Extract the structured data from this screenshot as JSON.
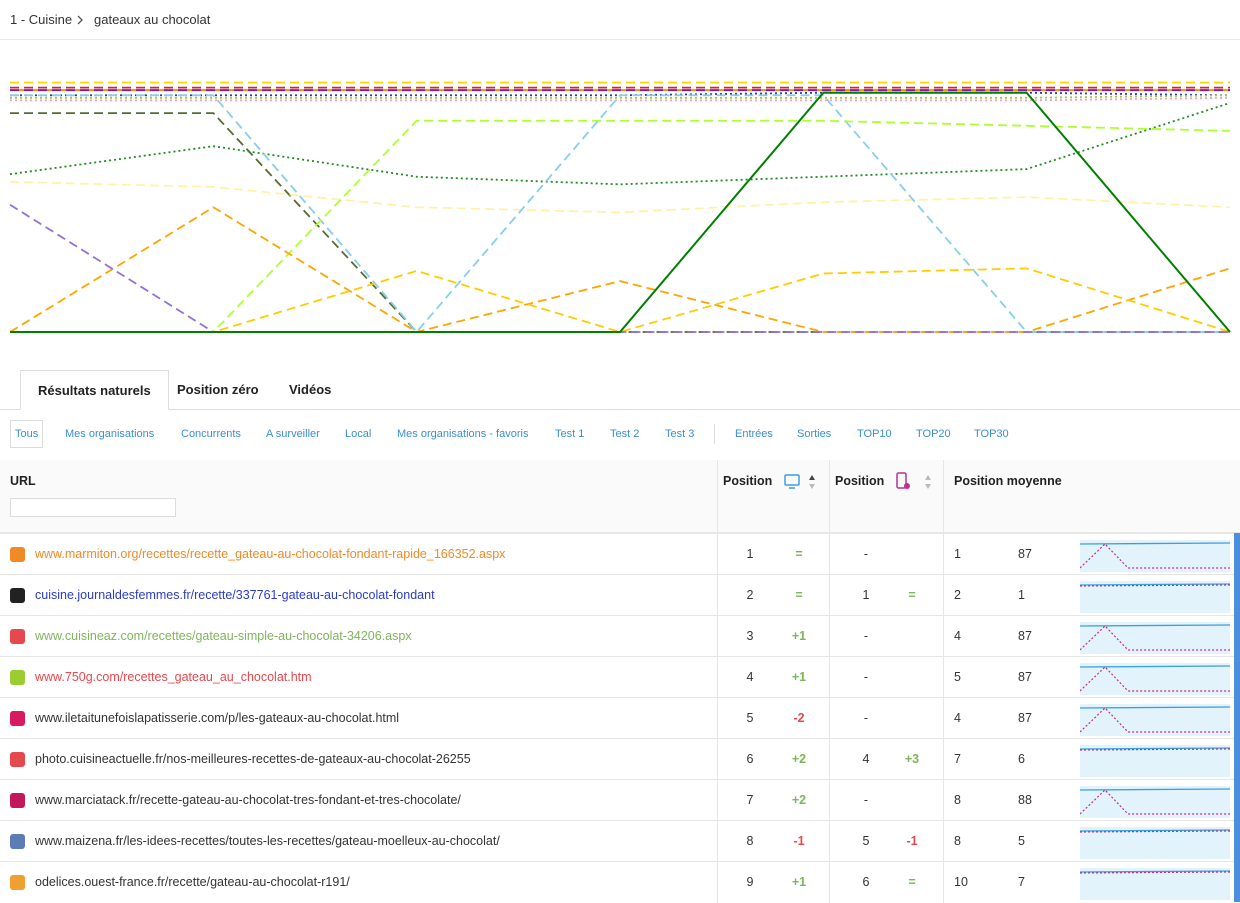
{
  "breadcrumb": [
    "1 - Cuisine",
    "gateaux au chocolat"
  ],
  "chart": {
    "type": "line",
    "ylim": [
      1,
      100
    ],
    "series": [
      {
        "color": "#ffd700",
        "dash": "dashed",
        "values": [
          2,
          2,
          2,
          2,
          2,
          2,
          2
        ]
      },
      {
        "color": "#d62728",
        "dash": "dashed",
        "values": [
          4,
          4,
          4,
          4,
          4,
          4,
          4
        ]
      },
      {
        "color": "#ff8c00",
        "dash": "solid",
        "values": [
          5,
          5,
          5,
          5,
          5,
          5,
          5
        ]
      },
      {
        "color": "#7b1fa2",
        "dash": "dashed",
        "values": [
          5,
          5,
          5,
          5,
          5,
          5,
          5
        ]
      },
      {
        "color": "#1e3cc8",
        "dash": "dotted",
        "values": [
          7,
          7,
          7,
          7,
          6,
          6,
          7
        ]
      },
      {
        "color": "#9acd32",
        "dash": "dotted",
        "values": [
          8,
          8,
          8,
          8,
          8,
          8,
          7
        ]
      },
      {
        "color": "#ff99cc",
        "dash": "dotted",
        "values": [
          9,
          9,
          9,
          9,
          9,
          9,
          8
        ]
      },
      {
        "color": "#556b2f",
        "dash": "dashed",
        "values": [
          14,
          14,
          100,
          100,
          100,
          100,
          100
        ]
      },
      {
        "color": "#228b22",
        "dash": "dotted",
        "values": [
          38,
          27,
          39,
          42,
          39,
          36,
          10
        ]
      },
      {
        "color": "#fff2a8",
        "dash": "dashed",
        "values": [
          41,
          43,
          51,
          53,
          49,
          47,
          51
        ]
      },
      {
        "color": "#87ceeb",
        "dash": "dashed",
        "values": [
          7,
          7,
          100,
          7,
          7,
          100,
          100
        ]
      },
      {
        "color": "#adff2f",
        "dash": "dashed",
        "values": [
          100,
          100,
          17,
          17,
          17,
          19,
          21
        ]
      },
      {
        "color": "#ffa500",
        "dash": "dashed",
        "values": [
          100,
          51,
          100,
          80,
          100,
          100,
          75
        ]
      },
      {
        "color": "#ffcc00",
        "dash": "dashed",
        "values": [
          100,
          100,
          76,
          100,
          77,
          75,
          100
        ]
      },
      {
        "color": "#9370db",
        "dash": "dashed",
        "values": [
          50,
          100,
          100,
          100,
          100,
          100,
          100
        ]
      },
      {
        "color": "#008000",
        "dash": "solid",
        "values": [
          100,
          100,
          100,
          100,
          6,
          6,
          100
        ]
      }
    ]
  },
  "tabs": [
    "Résultats naturels",
    "Position zéro",
    "Vidéos"
  ],
  "filters": [
    "Tous",
    "Mes organisations",
    "Concurrents",
    "A surveiller",
    "Local",
    "Mes organisations - favoris",
    "Test 1",
    "Test 2",
    "Test 3"
  ],
  "filters2": [
    "Entrées",
    "Sorties",
    "TOP10",
    "TOP20",
    "TOP30"
  ],
  "table": {
    "headers": {
      "url": "URL",
      "desktop": "Position",
      "mobile": "Position",
      "average": "Position moyenne"
    },
    "rows": [
      {
        "url": "www.marmiton.org/recettes/recette_gateau-au-chocolat-fondant-rapide_166352.aspx",
        "color": "#f08a24",
        "desktop": 1,
        "desktop_change": "=",
        "mobile": "-",
        "avg_desktop": 1,
        "avg_mobile": 87
      },
      {
        "url": "cuisine.journaldesfemmes.fr/recette/337761-gateau-au-chocolat-fondant",
        "color": "#2a3cc7",
        "desktop": 2,
        "desktop_change": "=",
        "mobile": 1,
        "mobile_change": "=",
        "avg_desktop": 2,
        "avg_mobile": 1
      },
      {
        "url": "www.cuisineaz.com/recettes/gateau-simple-au-chocolat-34206.aspx",
        "color": "#7cb65a",
        "desktop": 3,
        "desktop_change": "+1",
        "mobile": "-",
        "avg_desktop": 4,
        "avg_mobile": 87
      },
      {
        "url": "www.750g.com/recettes_gateau_au_chocolat.htm",
        "color": "#e5484d",
        "desktop": 4,
        "desktop_change": "+1",
        "mobile": "-",
        "avg_desktop": 5,
        "avg_mobile": 87
      },
      {
        "url": "www.iletaitunefoislapatisserie.com/p/les-gateaux-au-chocolat.html",
        "color": "#333333",
        "desktop": 5,
        "desktop_change": "-2",
        "mobile": "-",
        "avg_desktop": 4,
        "avg_mobile": 87
      },
      {
        "url": "photo.cuisineactuelle.fr/nos-meilleures-recettes-de-gateaux-au-chocolat-26255",
        "color": "#333333",
        "desktop": 6,
        "desktop_change": "+2",
        "mobile": 4,
        "mobile_change": "+3",
        "avg_desktop": 7,
        "avg_mobile": 6
      },
      {
        "url": "www.marciatack.fr/recette-gateau-au-chocolat-tres-fondant-et-tres-chocolate/",
        "color": "#333333",
        "desktop": 7,
        "desktop_change": "+2",
        "mobile": "-",
        "avg_desktop": 8,
        "avg_mobile": 88
      },
      {
        "url": "www.maizena.fr/les-idees-recettes/toutes-les-recettes/gateau-moelleux-au-chocolat/",
        "color": "#333333",
        "desktop": 8,
        "desktop_change": "-1",
        "mobile": 5,
        "mobile_change": "-1",
        "avg_desktop": 8,
        "avg_mobile": 5
      },
      {
        "url": "odelices.ouest-france.fr/recette/gateau-au-chocolat-r191/",
        "color": "#333333",
        "desktop": 9,
        "desktop_change": "+1",
        "mobile": 6,
        "mobile_change": "=",
        "avg_desktop": 10,
        "avg_mobile": 7
      }
    ]
  }
}
